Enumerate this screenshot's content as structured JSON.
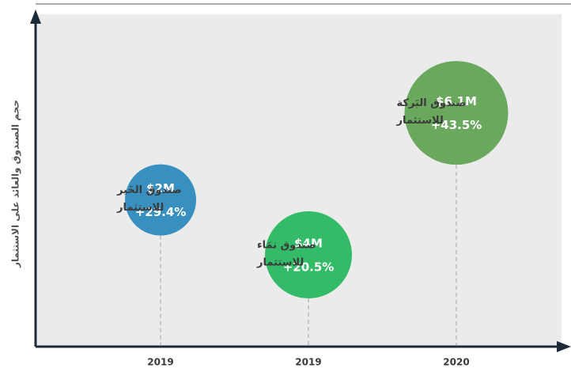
{
  "chart_data": {
    "type": "bubble",
    "y_label": "حجم الصندوق والعائد على الاستثمار",
    "categories": [
      "2019",
      "2019",
      "2020"
    ],
    "labels": [
      [
        "صندوق الخَير",
        "للاستثمار"
      ],
      [
        "صندوق نمَاء",
        "للاستثمار"
      ],
      [
        "صندوق البَركة",
        "للاستثمار"
      ]
    ],
    "values": [
      2,
      4,
      6.1
    ],
    "value_labels": [
      "$2M",
      "$4M",
      "$6.1M"
    ],
    "returns": [
      29.4,
      20.5,
      43.5
    ],
    "return_labels": [
      "+29.4%",
      "+20.5%",
      "+43.5%"
    ],
    "colors": [
      "#3890c0",
      "#34bb68",
      "#6aa85d"
    ]
  }
}
